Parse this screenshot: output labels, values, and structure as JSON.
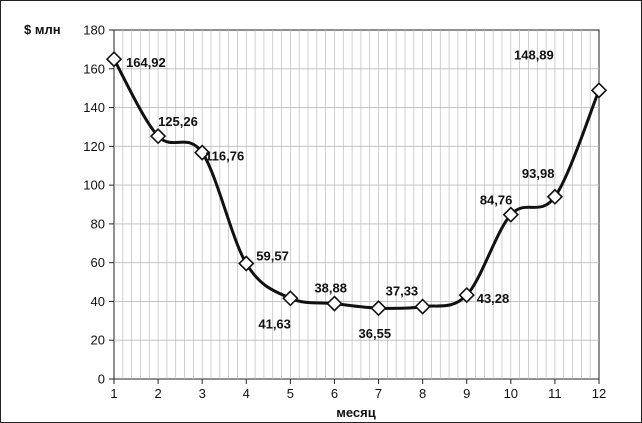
{
  "chart_data": {
    "type": "line",
    "ylabel": "$ млн",
    "xlabel": "месяц",
    "x": [
      1,
      2,
      3,
      4,
      5,
      6,
      7,
      8,
      9,
      10,
      11,
      12
    ],
    "y": [
      164.92,
      125.26,
      116.76,
      59.57,
      41.63,
      38.88,
      36.55,
      37.33,
      43.28,
      84.76,
      93.98,
      148.89
    ],
    "data_labels": [
      "164,92",
      "125,26",
      "116,76",
      "59,57",
      "41,63",
      "38,88",
      "36,55",
      "37,33",
      "43,28",
      "84,76",
      "93,98",
      "148,89"
    ],
    "xticks": [
      "1",
      "2",
      "3",
      "4",
      "5",
      "6",
      "7",
      "8",
      "9",
      "10",
      "11",
      "12"
    ],
    "yticks": [
      "0",
      "20",
      "40",
      "60",
      "80",
      "100",
      "120",
      "140",
      "160",
      "180"
    ],
    "ylim": [
      0,
      180
    ],
    "xlim": [
      1,
      12
    ],
    "grid": true,
    "marker": "diamond",
    "smooth": true,
    "colors": {
      "line": "#111111",
      "grid": "#bbbbbb",
      "marker_fill": "#ffffff"
    }
  }
}
